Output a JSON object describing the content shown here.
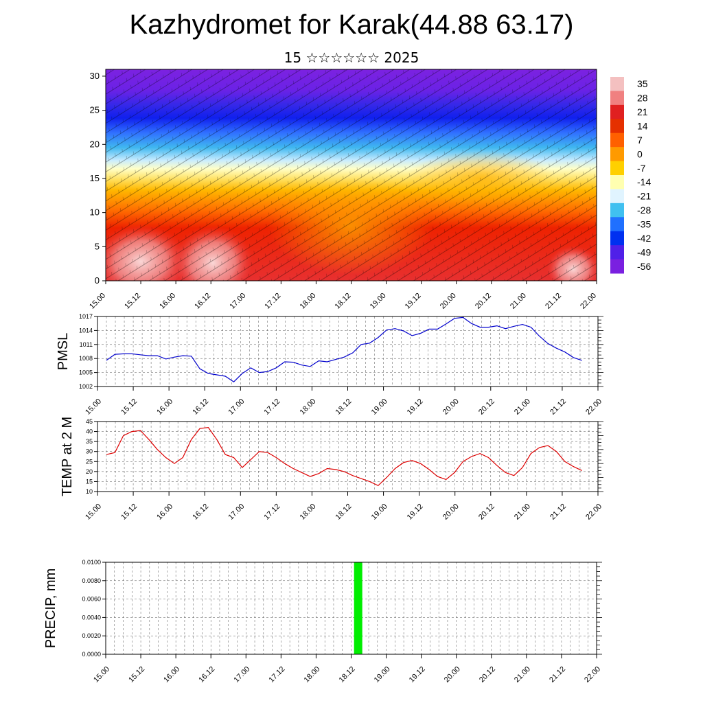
{
  "header": {
    "title": "Kazhydromet for Karak(44.88 63.17)",
    "subtitle": "15 ☆☆☆☆☆☆ 2025"
  },
  "colors": {
    "pmsl_line": "#0000cc",
    "temp_line": "#dd0000",
    "precip_bar": "#00ee00",
    "colorbar": [
      "#f4c0c0",
      "#f08080",
      "#e02020",
      "#e53000",
      "#ff6000",
      "#ff9a00",
      "#ffd000",
      "#ffffb0",
      "#e0f4ff",
      "#40c0f0",
      "#2070ff",
      "#0030f0",
      "#5020e8",
      "#7a20e0"
    ]
  },
  "chart_data": [
    {
      "type": "heatmap",
      "name": "cross-section",
      "x_ticks": [
        "15.00",
        "15.12",
        "16.00",
        "16.12",
        "17.00",
        "17.12",
        "18.00",
        "18.12",
        "19.00",
        "19.12",
        "20.00",
        "20.12",
        "21.00",
        "21.12",
        "22.00"
      ],
      "y_ticks": [
        "0",
        "5",
        "10",
        "15",
        "20",
        "25",
        "30"
      ],
      "ylim": [
        0,
        31
      ],
      "colorbar_labels": [
        "35",
        "28",
        "21",
        "14",
        "7",
        "0",
        "-7",
        "-14",
        "-21",
        "-28",
        "-35",
        "-42",
        "-49",
        "-56"
      ]
    },
    {
      "type": "line",
      "name": "pmsl",
      "ylabel": "PMSL",
      "yticks": [
        "1017",
        "1014",
        "1011",
        "1008",
        "1005",
        "1002"
      ],
      "ylim": [
        1002,
        1017
      ],
      "x_ticks": [
        "15.00",
        "15.12",
        "16.00",
        "16.12",
        "17.00",
        "17.12",
        "18.00",
        "18.12",
        "19.00",
        "19.12",
        "20.00",
        "20.12",
        "21.00",
        "21.12",
        "22.00"
      ],
      "x": [
        0,
        0.125,
        0.25,
        0.375,
        0.5,
        0.625,
        0.75,
        0.875,
        1,
        1.125,
        1.25,
        1.375,
        1.5,
        1.625,
        1.75,
        1.875,
        2,
        2.125,
        2.25,
        2.375,
        2.5,
        2.625,
        2.75,
        2.875,
        3,
        3.125,
        3.25,
        3.375,
        3.5,
        3.625,
        3.75,
        3.875,
        4,
        4.125,
        4.25,
        4.375,
        4.5,
        4.625,
        4.75,
        4.875,
        5,
        5.125,
        5.25,
        5.375,
        5.5,
        5.625,
        5.75,
        5.875,
        6,
        6.125,
        6.25,
        6.375,
        6.5,
        6.625,
        6.75,
        6.875,
        7
      ],
      "values": [
        1007.6,
        1008.9,
        1009.0,
        1009.0,
        1008.8,
        1008.6,
        1008.6,
        1007.9,
        1008.3,
        1008.6,
        1008.5,
        1005.8,
        1004.8,
        1004.5,
        1004.2,
        1003.0,
        1004.8,
        1006.0,
        1005.0,
        1005.2,
        1006.0,
        1007.3,
        1007.2,
        1006.6,
        1006.3,
        1007.5,
        1007.3,
        1007.8,
        1008.3,
        1009.2,
        1011.0,
        1011.3,
        1012.5,
        1014.1,
        1014.4,
        1013.9,
        1012.9,
        1013.4,
        1014.3,
        1014.3,
        1015.4,
        1016.6,
        1016.8,
        1015.5,
        1014.7,
        1014.7,
        1015.0,
        1014.4,
        1014.9,
        1015.3,
        1014.7,
        1012.8,
        1011.2,
        1010.2,
        1009.4,
        1008.2,
        1007.6
      ]
    },
    {
      "type": "line",
      "name": "temp",
      "ylabel": "TEMP at 2 M",
      "yticks": [
        "45",
        "40",
        "35",
        "30",
        "25",
        "20",
        "15",
        "10"
      ],
      "ylim": [
        10,
        45
      ],
      "x_ticks": [
        "15.00",
        "15.12",
        "16.00",
        "16.12",
        "17.00",
        "17.12",
        "18.00",
        "18.12",
        "19.00",
        "19.12",
        "20.00",
        "20.12",
        "21.00",
        "21.12",
        "22.00"
      ],
      "x": [
        0,
        0.125,
        0.25,
        0.375,
        0.5,
        0.625,
        0.75,
        0.875,
        1,
        1.125,
        1.25,
        1.375,
        1.5,
        1.625,
        1.75,
        1.875,
        2,
        2.125,
        2.25,
        2.375,
        2.5,
        2.625,
        2.75,
        2.875,
        3,
        3.125,
        3.25,
        3.375,
        3.5,
        3.625,
        3.75,
        3.875,
        4,
        4.125,
        4.25,
        4.375,
        4.5,
        4.625,
        4.75,
        4.875,
        5,
        5.125,
        5.25,
        5.375,
        5.5,
        5.625,
        5.75,
        5.875,
        6,
        6.125,
        6.25,
        6.375,
        6.5,
        6.625,
        6.75,
        6.875,
        7
      ],
      "values": [
        28.5,
        29.5,
        38,
        40,
        40.5,
        36,
        31,
        27,
        24,
        27,
        36,
        41.5,
        42,
        36,
        28.5,
        27,
        22,
        26,
        30,
        29.5,
        27,
        24,
        21.5,
        19.5,
        17.5,
        19,
        21.5,
        21,
        20,
        18,
        16.5,
        15,
        13,
        17,
        21.5,
        24.5,
        25.5,
        24,
        21,
        17.5,
        16,
        19.5,
        25,
        27.5,
        29,
        27,
        23,
        19.5,
        18,
        22,
        29,
        32,
        33,
        30,
        25,
        22.5,
        20.5
      ]
    },
    {
      "type": "bar",
      "name": "precip",
      "ylabel": "PRECIP, mm",
      "yticks": [
        "0.0100",
        "0.0080",
        "0.0060",
        "0.0040",
        "0.0020",
        "0.0000"
      ],
      "ylim": [
        0,
        0.01
      ],
      "x_ticks": [
        "15.00",
        "15.12",
        "16.00",
        "16.12",
        "17.00",
        "17.12",
        "18.00",
        "18.12",
        "19.00",
        "19.12",
        "20.00",
        "20.12",
        "21.00",
        "21.12",
        "22.00"
      ],
      "bars": [
        {
          "x": 3.6,
          "value": 0.01
        }
      ]
    }
  ]
}
